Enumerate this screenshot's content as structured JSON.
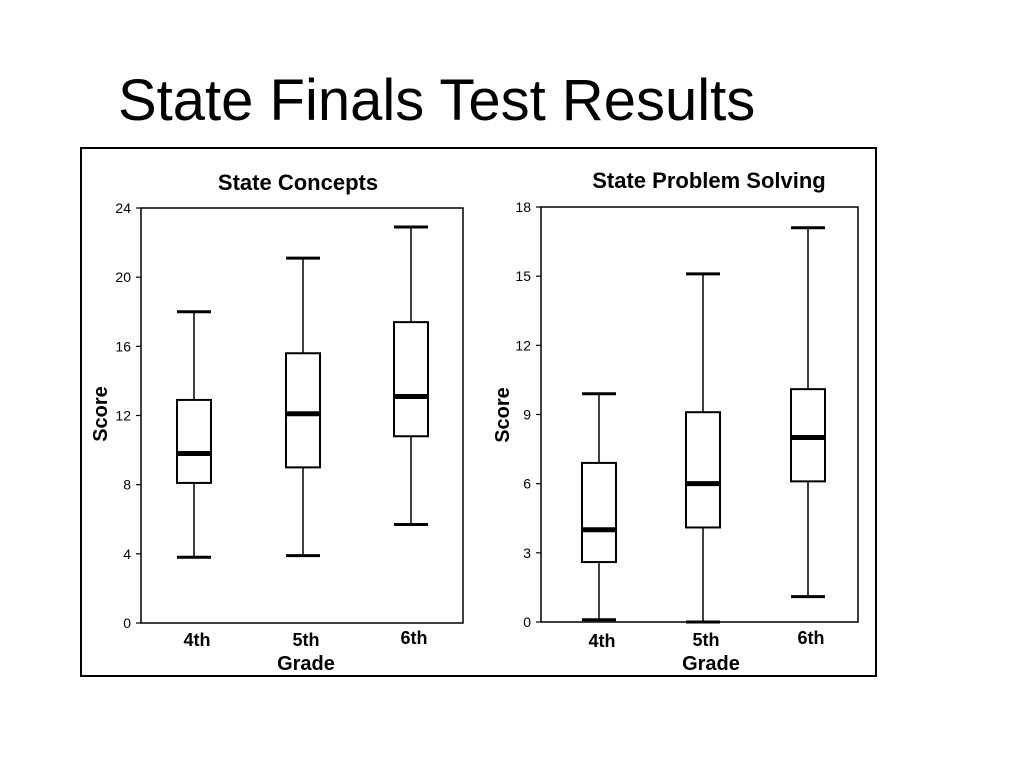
{
  "slide": {
    "title": "State Finals Test Results"
  },
  "chart_data": [
    {
      "type": "boxplot",
      "title": "State Concepts",
      "xlabel": "Grade",
      "ylabel": "Score",
      "ylim": [
        0,
        24
      ],
      "yticks": [
        0,
        4,
        8,
        12,
        16,
        20,
        24
      ],
      "categories": [
        "4th",
        "5th",
        "6th"
      ],
      "boxes": [
        {
          "category": "4th",
          "min": 3.8,
          "q1": 8.1,
          "median": 9.8,
          "q3": 12.9,
          "max": 18.0
        },
        {
          "category": "5th",
          "min": 3.9,
          "q1": 9.0,
          "median": 12.1,
          "q3": 15.6,
          "max": 21.1
        },
        {
          "category": "6th",
          "min": 5.7,
          "q1": 10.8,
          "median": 13.1,
          "q3": 17.4,
          "max": 22.9
        }
      ],
      "grid": false,
      "legend": "none"
    },
    {
      "type": "boxplot",
      "title": "State Problem Solving",
      "xlabel": "Grade",
      "ylabel": "Score",
      "ylim": [
        0,
        18
      ],
      "yticks": [
        0,
        3,
        6,
        9,
        12,
        15,
        18
      ],
      "categories": [
        "4th",
        "5th",
        "6th"
      ],
      "boxes": [
        {
          "category": "4th",
          "min": 0.1,
          "q1": 2.6,
          "median": 4.0,
          "q3": 6.9,
          "max": 9.9
        },
        {
          "category": "5th",
          "min": 0.0,
          "q1": 4.1,
          "median": 6.0,
          "q3": 9.1,
          "max": 15.1
        },
        {
          "category": "6th",
          "min": 1.1,
          "q1": 6.1,
          "median": 8.0,
          "q3": 10.1,
          "max": 17.1
        }
      ],
      "grid": false,
      "legend": "none"
    }
  ]
}
